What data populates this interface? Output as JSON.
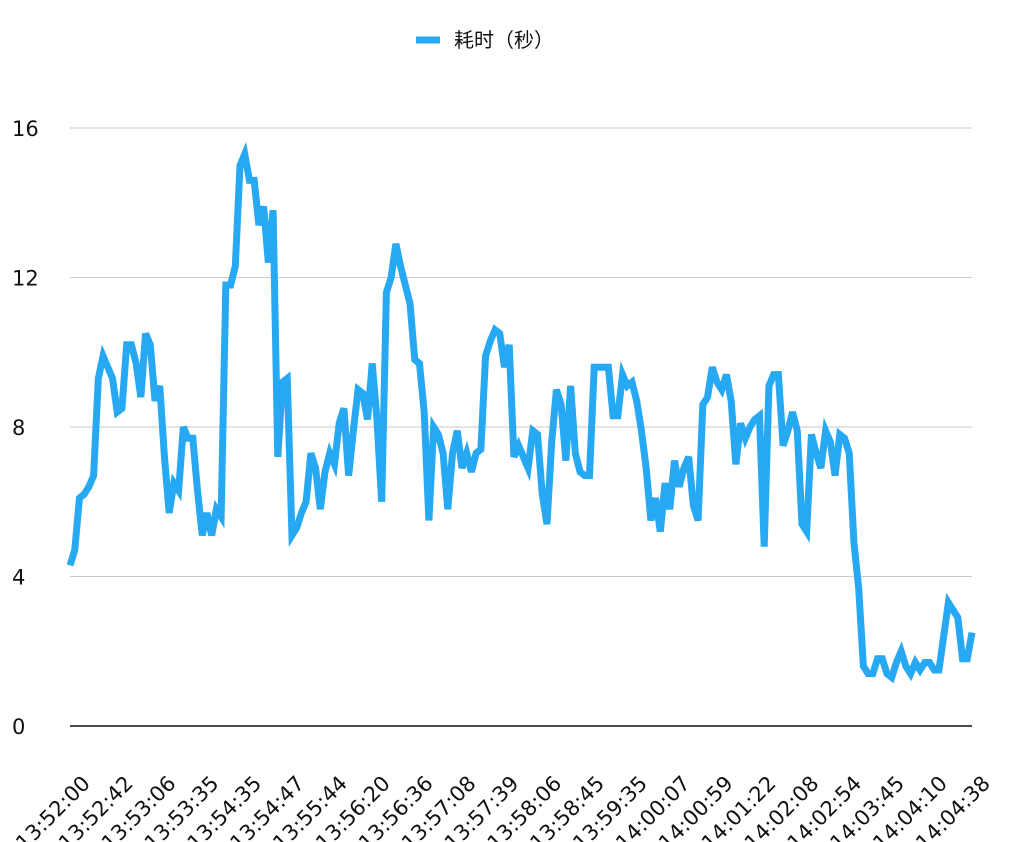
{
  "chart_data": {
    "type": "line",
    "title": "",
    "xlabel": "",
    "ylabel": "",
    "legend": {
      "position": "top-center",
      "entries": [
        "耗时（秒）"
      ]
    },
    "grid": true,
    "ylim": [
      0,
      16
    ],
    "y_ticks": [
      0,
      4,
      8,
      12,
      16
    ],
    "x_tick_labels": [
      "13:52:00",
      "13:52:42",
      "13:53:06",
      "13:53:35",
      "13:54:35",
      "13:54:47",
      "13:55:44",
      "13:56:20",
      "13:56:36",
      "13:57:08",
      "13:57:39",
      "13:58:06",
      "13:58:45",
      "13:59:35",
      "14:00:07",
      "14:00:59",
      "14:01:22",
      "14:02:08",
      "14:02:54",
      "14:03:45",
      "14:04:10",
      "14:04:38"
    ],
    "series": [
      {
        "name": "耗时（秒）",
        "color": "#27a8f3",
        "values": [
          4.3,
          4.7,
          6.1,
          6.2,
          6.4,
          6.7,
          9.3,
          9.9,
          9.6,
          9.3,
          8.4,
          8.5,
          10.2,
          10.2,
          9.7,
          8.8,
          10.5,
          10.2,
          8.7,
          9.1,
          7.2,
          5.7,
          6.5,
          6.3,
          8.0,
          7.7,
          7.7,
          6.3,
          5.1,
          5.7,
          5.1,
          5.8,
          5.6,
          11.8,
          11.8,
          12.3,
          15.0,
          15.3,
          14.6,
          14.6,
          13.4,
          13.9,
          12.4,
          13.8,
          7.2,
          9.2,
          9.3,
          5.1,
          5.3,
          5.7,
          6.0,
          7.3,
          6.9,
          5.8,
          6.8,
          7.3,
          7.0,
          8.1,
          8.5,
          6.7,
          7.9,
          9.0,
          8.9,
          8.2,
          9.7,
          8.2,
          6.0,
          11.6,
          12.0,
          12.9,
          12.3,
          11.8,
          11.3,
          9.8,
          9.7,
          8.4,
          5.5,
          8.0,
          7.8,
          7.3,
          5.8,
          7.3,
          7.9,
          6.9,
          7.3,
          6.8,
          7.3,
          7.4,
          9.9,
          10.3,
          10.6,
          10.5,
          9.6,
          10.2,
          7.2,
          7.5,
          7.2,
          6.9,
          7.9,
          7.8,
          6.2,
          5.4,
          7.6,
          9.0,
          8.6,
          7.1,
          9.1,
          7.3,
          6.8,
          6.7,
          6.7,
          9.6,
          9.6,
          9.6,
          9.6,
          8.3,
          8.3,
          9.4,
          9.1,
          9.2,
          8.7,
          7.9,
          6.9,
          5.5,
          6.1,
          5.2,
          6.5,
          5.8,
          7.1,
          6.4,
          6.9,
          7.2,
          5.9,
          5.5,
          8.6,
          8.8,
          9.6,
          9.2,
          9.0,
          9.4,
          8.7,
          7.0,
          8.1,
          7.7,
          8.0,
          8.2,
          8.3,
          4.8,
          9.1,
          9.4,
          9.4,
          7.5,
          7.9,
          8.4,
          7.9,
          5.4,
          5.2,
          7.8,
          7.3,
          6.9,
          7.9,
          7.6,
          6.7,
          7.8,
          7.7,
          7.3,
          4.9,
          3.7,
          1.6,
          1.4,
          1.4,
          1.8,
          1.8,
          1.4,
          1.3,
          1.7,
          2.0,
          1.6,
          1.4,
          1.7,
          1.5,
          1.7,
          1.7,
          1.5,
          1.5,
          2.4,
          3.3,
          3.1,
          2.9,
          1.8,
          1.8,
          2.5
        ]
      }
    ]
  }
}
